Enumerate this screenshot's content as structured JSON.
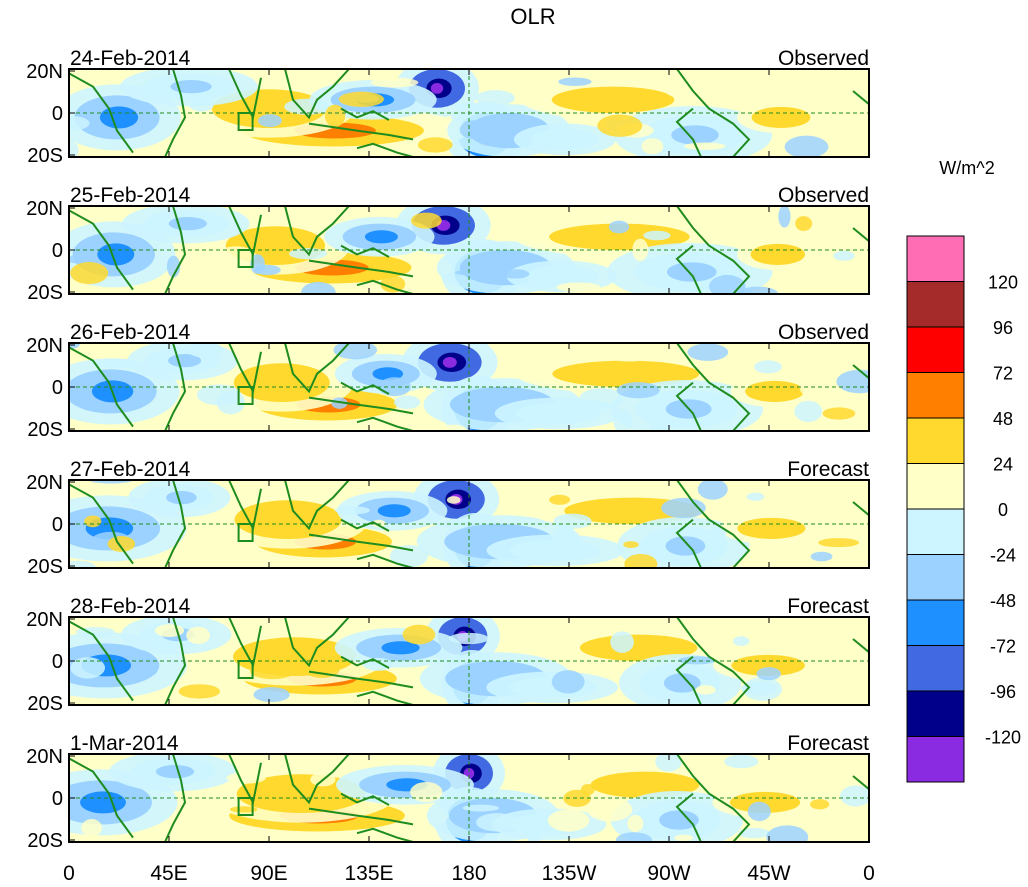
{
  "title": "OLR",
  "units_label": "W/m^2",
  "lat_labels": [
    "20N",
    "0",
    "20S"
  ],
  "lon_labels": [
    "0",
    "45E",
    "90E",
    "135E",
    "180",
    "135W",
    "90W",
    "45W",
    "0"
  ],
  "panels": [
    {
      "date": "24-Feb-2014",
      "kind": "Observed"
    },
    {
      "date": "25-Feb-2014",
      "kind": "Observed"
    },
    {
      "date": "26-Feb-2014",
      "kind": "Observed"
    },
    {
      "date": "27-Feb-2014",
      "kind": "Forecast"
    },
    {
      "date": "28-Feb-2014",
      "kind": "Forecast"
    },
    {
      "date": "1-Mar-2014",
      "kind": "Forecast"
    }
  ],
  "colorbar": {
    "ticks": [
      "120",
      "96",
      "72",
      "48",
      "24",
      "0",
      "-24",
      "-48",
      "-72",
      "-96",
      "-120"
    ],
    "colors": [
      "#ff6eb4",
      "#a52a2a",
      "#ff0000",
      "#ff7f00",
      "#ffd92e",
      "#ffffc8",
      "#cdf5ff",
      "#9cd2ff",
      "#1e90ff",
      "#4169e1",
      "#00008b",
      "#8a2be2"
    ]
  },
  "map_colors": {
    "coast": "#1e8c1e",
    "equator": "#1e8c1e",
    "background": "#ffffc8"
  }
}
